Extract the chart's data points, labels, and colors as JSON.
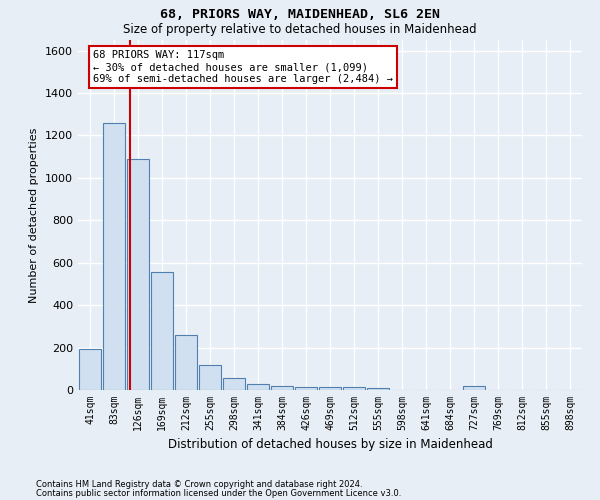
{
  "title1": "68, PRIORS WAY, MAIDENHEAD, SL6 2EN",
  "title2": "Size of property relative to detached houses in Maidenhead",
  "xlabel": "Distribution of detached houses by size in Maidenhead",
  "ylabel": "Number of detached properties",
  "footnote1": "Contains HM Land Registry data © Crown copyright and database right 2024.",
  "footnote2": "Contains public sector information licensed under the Open Government Licence v3.0.",
  "annotation_line1": "68 PRIORS WAY: 117sqm",
  "annotation_line2": "← 30% of detached houses are smaller (1,099)",
  "annotation_line3": "69% of semi-detached houses are larger (2,484) →",
  "bar_labels": [
    "41sqm",
    "83sqm",
    "126sqm",
    "169sqm",
    "212sqm",
    "255sqm",
    "298sqm",
    "341sqm",
    "384sqm",
    "426sqm",
    "469sqm",
    "512sqm",
    "555sqm",
    "598sqm",
    "641sqm",
    "684sqm",
    "727sqm",
    "769sqm",
    "812sqm",
    "855sqm",
    "898sqm"
  ],
  "bar_values": [
    193,
    1260,
    1090,
    555,
    260,
    120,
    55,
    30,
    20,
    15,
    15,
    12,
    10,
    0,
    0,
    0,
    20,
    0,
    0,
    0,
    0
  ],
  "bar_color": "#d0e0f0",
  "bar_edge_color": "#5080b0",
  "vline_color": "#cc0000",
  "vline_x": 1.65,
  "ylim": [
    0,
    1650
  ],
  "yticks": [
    0,
    200,
    400,
    600,
    800,
    1000,
    1200,
    1400,
    1600
  ],
  "background_color": "#e8eef5",
  "grid_color": "#ffffff",
  "annotation_box_color": "#ffffff",
  "annotation_box_edge": "#cc0000"
}
